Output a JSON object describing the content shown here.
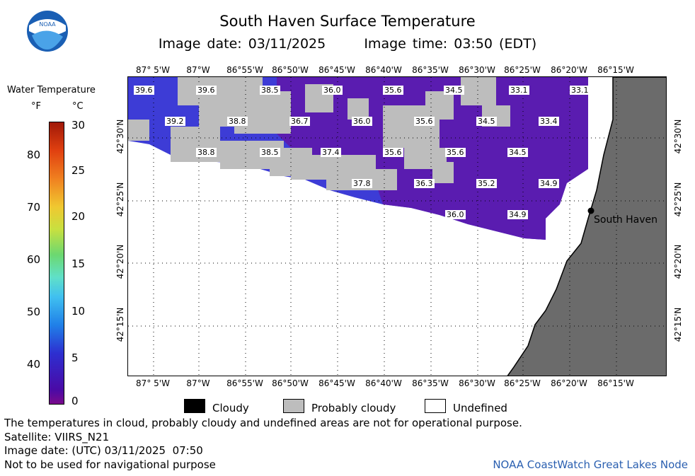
{
  "header": {
    "title": "South Haven Surface Temperature",
    "image_date_label": "Image date: 03/11/2025",
    "image_time_label": "Image time: 03:50 (EDT)",
    "logo_text": "NOAA"
  },
  "legend": {
    "title": "Water Temperature",
    "unit_f": "°F",
    "unit_c": "°C",
    "f_ticks": [
      "80",
      "70",
      "60",
      "50",
      "40"
    ],
    "c_ticks": [
      "30",
      "25",
      "20",
      "15",
      "10",
      "5",
      "0"
    ]
  },
  "map": {
    "lon_labels": [
      "87° 5'W",
      "87°W",
      "86°55'W",
      "86°50'W",
      "86°45'W",
      "86°40'W",
      "86°35'W",
      "86°30'W",
      "86°25'W",
      "86°20'W",
      "86°15'W"
    ],
    "lat_labels": [
      "42°30'N",
      "42°25'N",
      "42°20'N",
      "42°15'N"
    ],
    "place_label": "South Haven",
    "temperature_labels": [
      "39.6",
      "39.6",
      "38.5",
      "36.0",
      "35.6",
      "34.5",
      "33.1",
      "33.1",
      "39.2",
      "38.8",
      "36.7",
      "36.0",
      "35.6",
      "34.5",
      "33.4",
      "38.8",
      "38.5",
      "37.4",
      "35.6",
      "35.6",
      "34.5",
      "37.8",
      "36.3",
      "35.2",
      "34.9",
      "36.0",
      "34.9"
    ],
    "colors": {
      "land": "#6b6b6b",
      "cloud_probable": "#bdbdbd",
      "water_cold": "#5a1cb0",
      "water_blue": "#3d3cd6"
    }
  },
  "key": {
    "cloudy": "Cloudy",
    "probably_cloudy": "Probably cloudy",
    "undefined": "Undefined"
  },
  "footer": {
    "disclaimer": "The temperatures in cloud, probably cloudy and undefined areas are not for operational purpose.",
    "satellite": "Satellite: VIIRS_N21",
    "utc_date": "Image date: (UTC) 03/11/2025  07:50",
    "nav_warning": "Not to be used for navigational purpose",
    "credit": "NOAA CoastWatch Great Lakes Node"
  }
}
